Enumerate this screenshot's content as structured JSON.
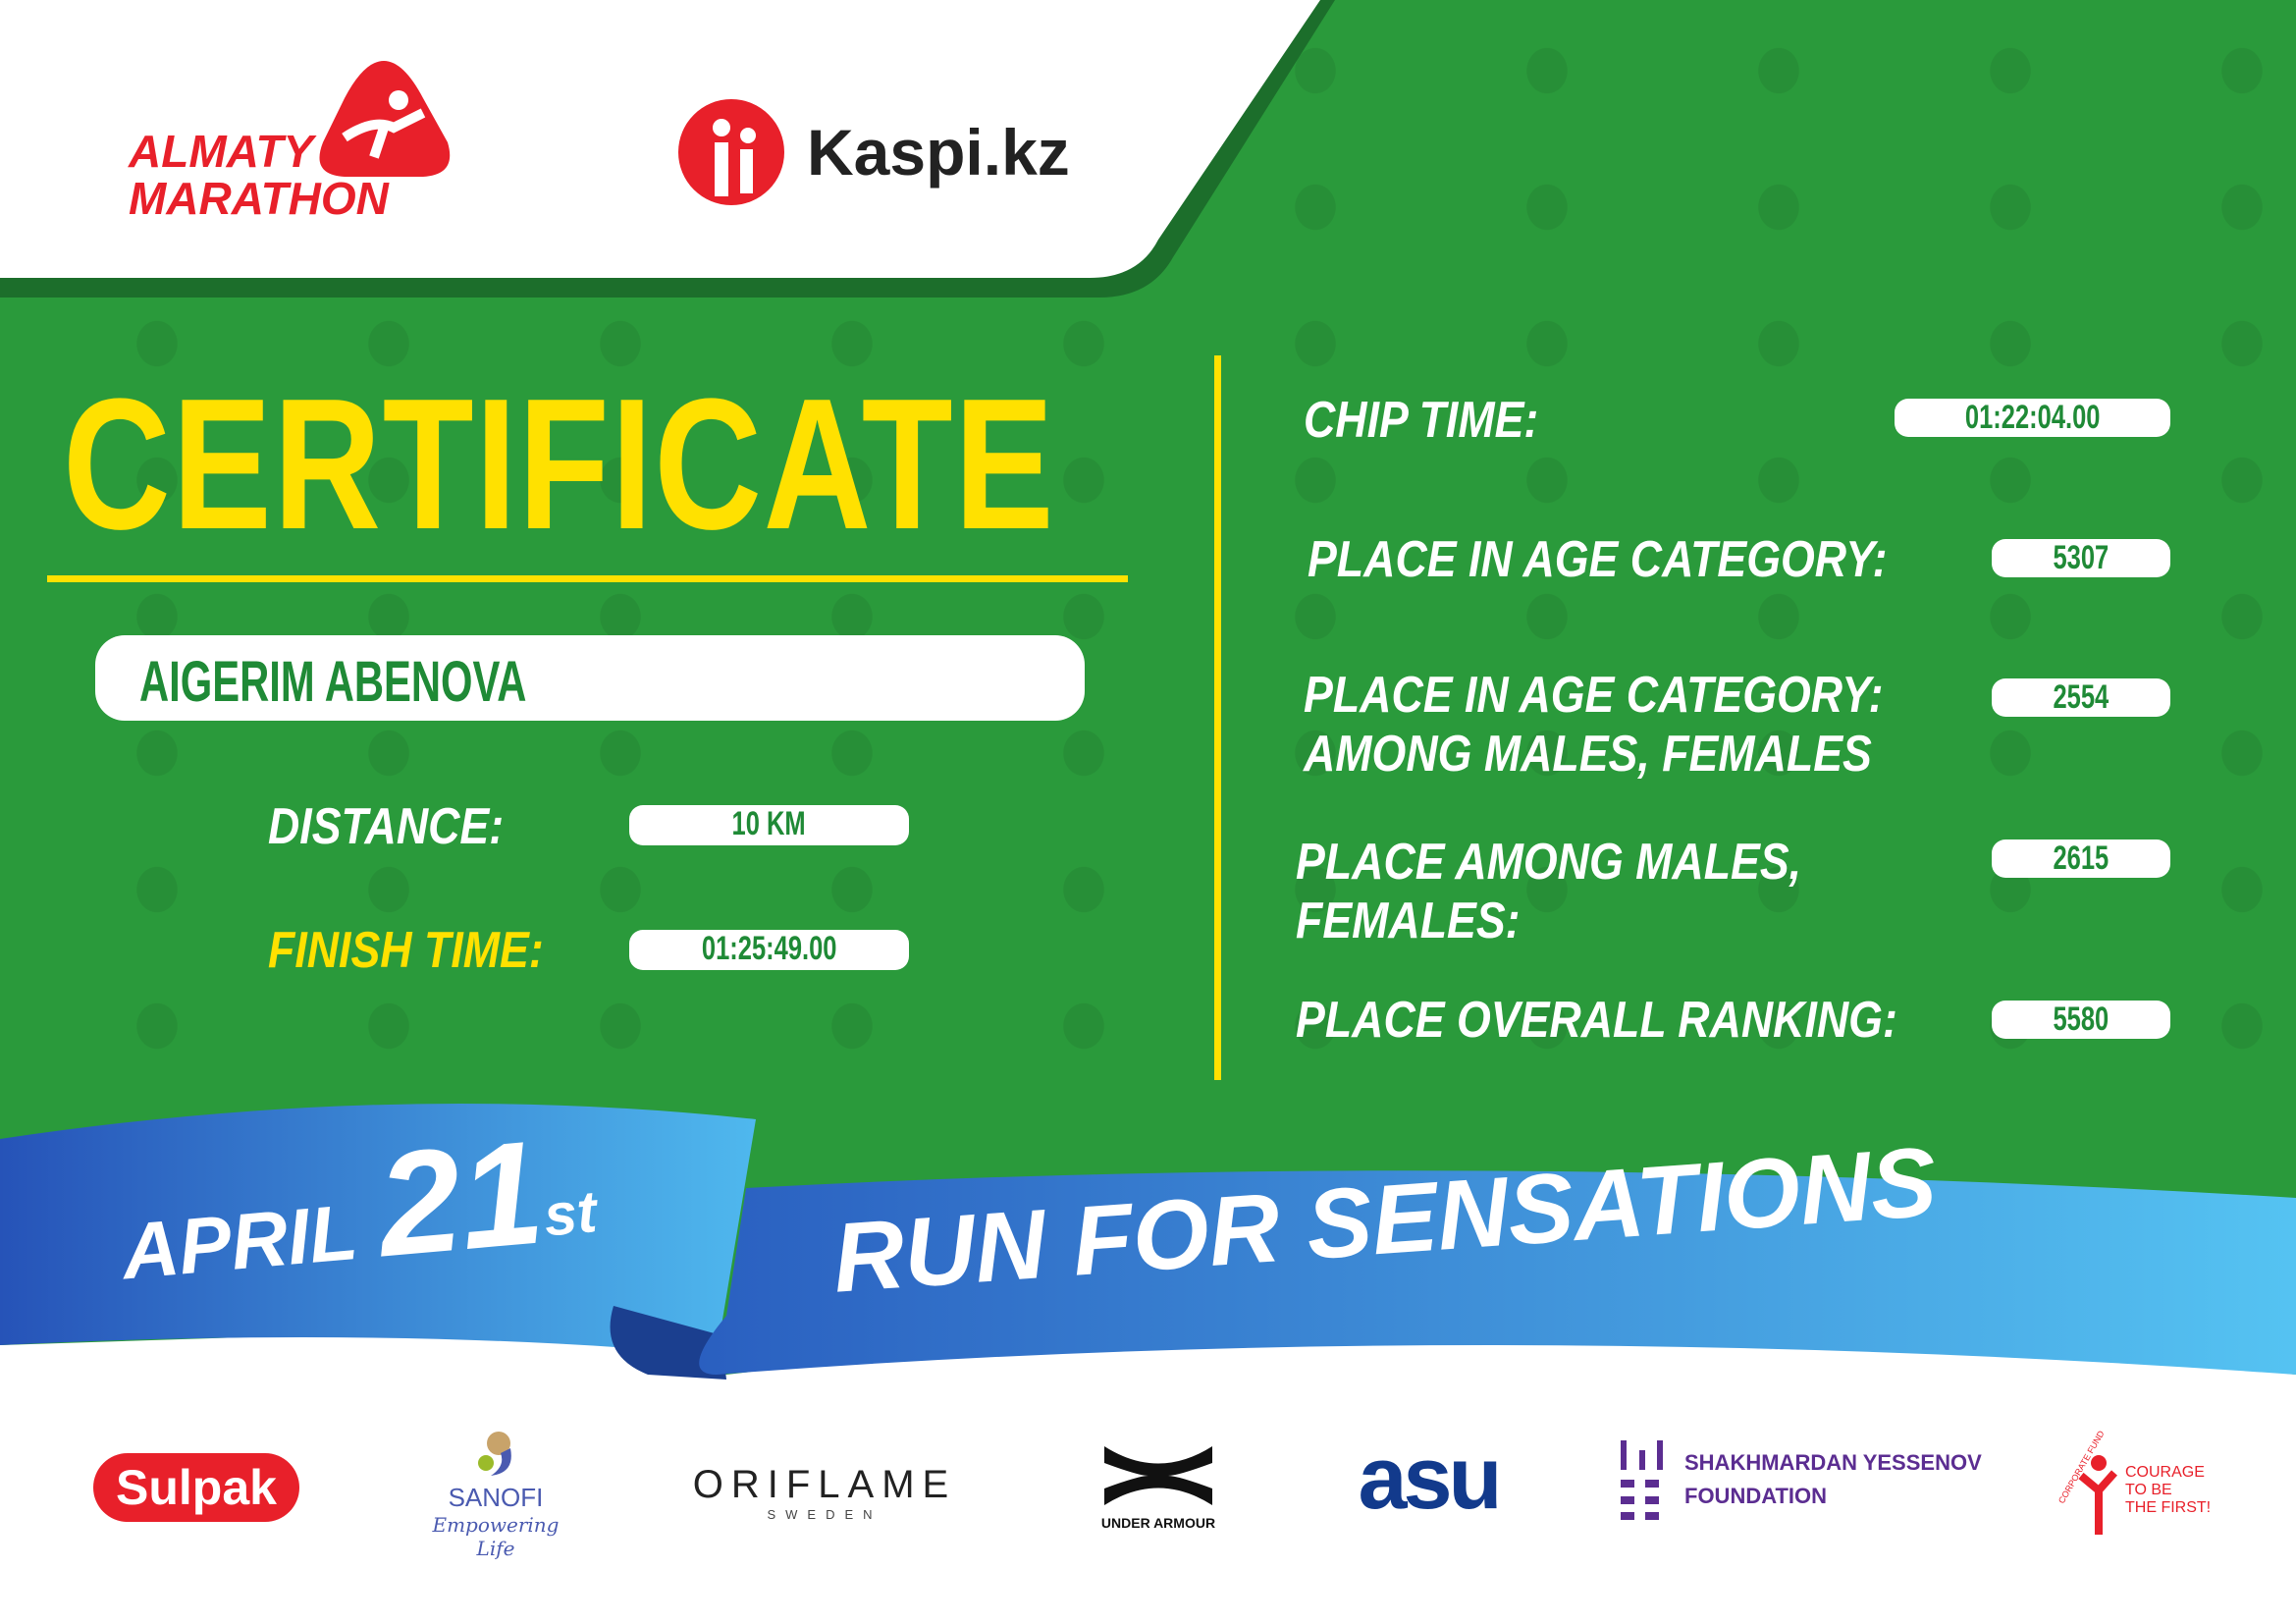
{
  "header": {
    "event_logo_text": [
      "ALMATY",
      "MARATHON"
    ],
    "sponsor_logo_text": "Kaspi.kz"
  },
  "certificate": {
    "title": "CERTIFICATE",
    "participant_name": "AIGERIM ABENOVA",
    "distance_label": "DISTANCE:",
    "distance_value": "10 KM",
    "finish_label": "FINISH TIME:",
    "finish_value": "01:25:49.00",
    "chip_label": "CHIP TIME:",
    "chip_value": "01:22:04.00",
    "age_place_label": "PLACE IN AGE CATEGORY:",
    "age_place_value": "5307",
    "age_gender_label_1": "PLACE IN AGE CATEGORY:",
    "age_gender_label_2": "AMONG MALES, FEMALES",
    "age_gender_value": "2554",
    "gender_label_1": "PLACE AMONG MALES,",
    "gender_label_2": "FEMALES:",
    "gender_value": "2615",
    "overall_label": "PLACE OVERALL RANKING:",
    "overall_value": "5580"
  },
  "ribbon": {
    "month": "APRIL",
    "day": "21",
    "suffix": "st",
    "slogan": "RUN FOR SENSATIONS"
  },
  "sponsors": {
    "sulpak": "Sulpak",
    "sanofi": "SANOFI",
    "sanofi_tag": "Empowering Life",
    "oriflame": "ORIFLAME",
    "oriflame_sub": "SWEDEN",
    "under_armour": "UNDER ARMOUR",
    "asu": "asu",
    "yessenov_1": "SHAKHMARDAN YESSENOV",
    "yessenov_2": "FOUNDATION",
    "courage_arc": "CORPORATE FUND",
    "courage_1": "COURAGE",
    "courage_2": "TO BE",
    "courage_3": "THE FIRST!"
  },
  "colors": {
    "green": "#2a9a3b",
    "yellow": "#ffe100",
    "red": "#e8202a",
    "blue": "#2e7fd6",
    "purple": "#5b2d91"
  }
}
